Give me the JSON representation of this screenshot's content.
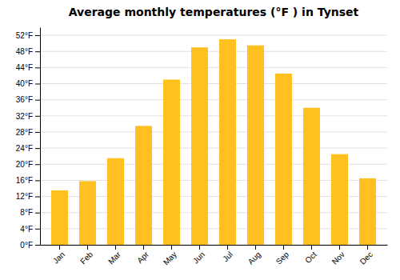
{
  "chart_data": {
    "type": "bar",
    "title": "Average monthly temperatures (°F ) in Tynset",
    "categories": [
      "Jan",
      "Feb",
      "Mar",
      "Apr",
      "May",
      "Jun",
      "Jul",
      "Aug",
      "Sep",
      "Oct",
      "Nov",
      "Dec"
    ],
    "values": [
      13.5,
      15.8,
      21.5,
      29.5,
      41.0,
      49.0,
      51.0,
      49.5,
      42.5,
      34.0,
      22.5,
      16.5
    ],
    "color": "#FFC020",
    "ylim": [
      0,
      54
    ],
    "yticks": [
      {
        "value": 0,
        "label": "0°F"
      },
      {
        "value": 4,
        "label": "4°F"
      },
      {
        "value": 8,
        "label": "8°F"
      },
      {
        "value": 12,
        "label": "12°F"
      },
      {
        "value": 16,
        "label": "16°F"
      },
      {
        "value": 20,
        "label": "20°F"
      },
      {
        "value": 24,
        "label": "24°F"
      },
      {
        "value": 28,
        "label": "28°F"
      },
      {
        "value": 32,
        "label": "32°F"
      },
      {
        "value": 36,
        "label": "36°F"
      },
      {
        "value": 40,
        "label": "40°F"
      },
      {
        "value": 44,
        "label": "44°F"
      },
      {
        "value": 48,
        "label": "48°F"
      },
      {
        "value": 52,
        "label": "52°F"
      }
    ],
    "grid": true
  }
}
